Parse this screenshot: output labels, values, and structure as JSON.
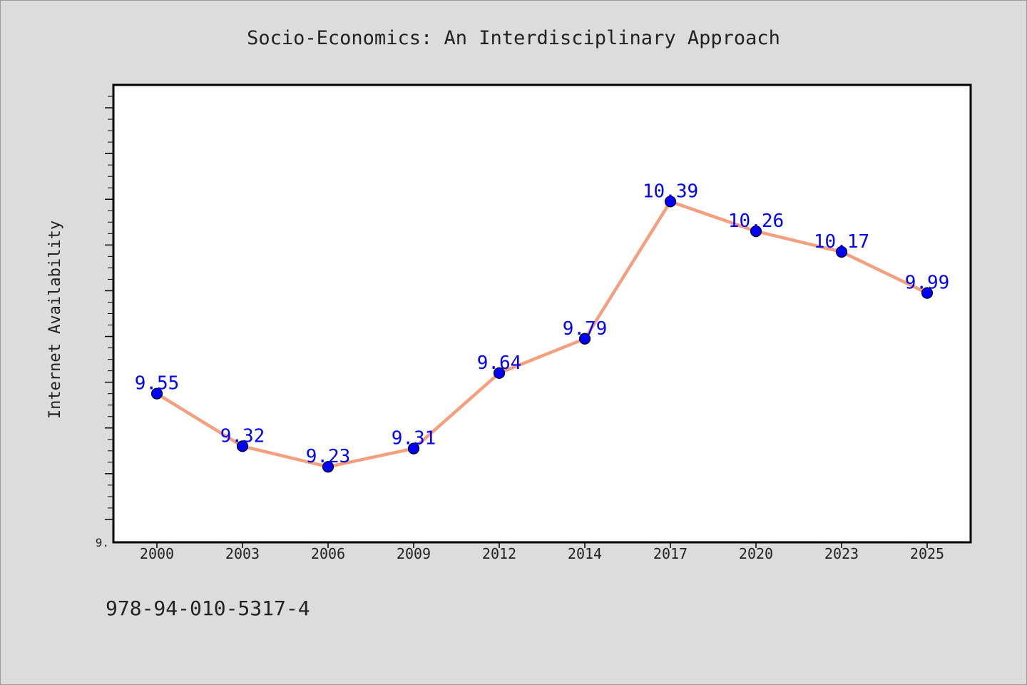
{
  "chart_data": {
    "type": "line",
    "title": "Socio-Economics: An Interdisciplinary Approach",
    "ylabel": "Internet Availability",
    "xlabel": "",
    "categories": [
      "2000",
      "2003",
      "2006",
      "2009",
      "2012",
      "2014",
      "2017",
      "2020",
      "2023",
      "2025"
    ],
    "series": [
      {
        "values": [
          9.55,
          9.32,
          9.23,
          9.31,
          9.64,
          9.79,
          10.39,
          10.26,
          10.17,
          9.99
        ],
        "labels": [
          "9.55",
          "9.32",
          "9.23",
          "9.31",
          "9.64",
          "9.79",
          "10.39",
          "10.26",
          "10.17",
          "9.99"
        ]
      }
    ],
    "ylim": [
      8.9,
      10.9
    ],
    "y_tick_label": "9.",
    "grid": false,
    "legend": "none",
    "colors": {
      "line": "#f4a07e",
      "marker": "#0000ff",
      "data_label": "#0000ff",
      "axis": "#000000",
      "plot_bg": "#ffffff",
      "page_bg": "#dcdcdc"
    }
  },
  "footer": {
    "isbn": "978-94-010-5317-4"
  }
}
